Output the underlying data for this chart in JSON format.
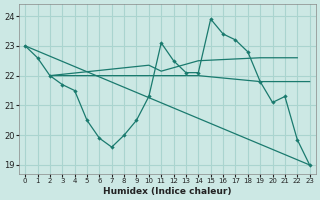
{
  "background_color": "#cce8e4",
  "grid_color": "#aad4cf",
  "line_color": "#1a7a6e",
  "xlabel": "Humidex (Indice chaleur)",
  "xlim": [
    -0.5,
    23.5
  ],
  "ylim": [
    18.7,
    24.4
  ],
  "yticks": [
    19,
    20,
    21,
    22,
    23,
    24
  ],
  "xticks": [
    0,
    1,
    2,
    3,
    4,
    5,
    6,
    7,
    8,
    9,
    10,
    11,
    12,
    13,
    14,
    15,
    16,
    17,
    18,
    19,
    20,
    21,
    22,
    23
  ],
  "line1_x": [
    0,
    1,
    2,
    3,
    4,
    5,
    6,
    7,
    8,
    9,
    10,
    11,
    12,
    13,
    14,
    15,
    16,
    17,
    18,
    19,
    20,
    21,
    22,
    23
  ],
  "line1_y": [
    23.0,
    22.6,
    22.0,
    21.7,
    21.5,
    20.5,
    19.9,
    19.6,
    20.0,
    20.5,
    21.3,
    23.1,
    22.5,
    22.1,
    22.1,
    23.9,
    23.4,
    23.2,
    22.8,
    21.8,
    21.1,
    21.3,
    19.85,
    19.0
  ],
  "line2_x": [
    0,
    23
  ],
  "line2_y": [
    23.0,
    19.0
  ],
  "line3_x": [
    2,
    10,
    11,
    14,
    19,
    22
  ],
  "line3_y": [
    22.0,
    22.35,
    22.15,
    22.5,
    22.6,
    22.6
  ],
  "line4_x": [
    2,
    10,
    14,
    19,
    20,
    23
  ],
  "line4_y": [
    22.0,
    22.0,
    22.0,
    21.8,
    21.8,
    21.8
  ]
}
